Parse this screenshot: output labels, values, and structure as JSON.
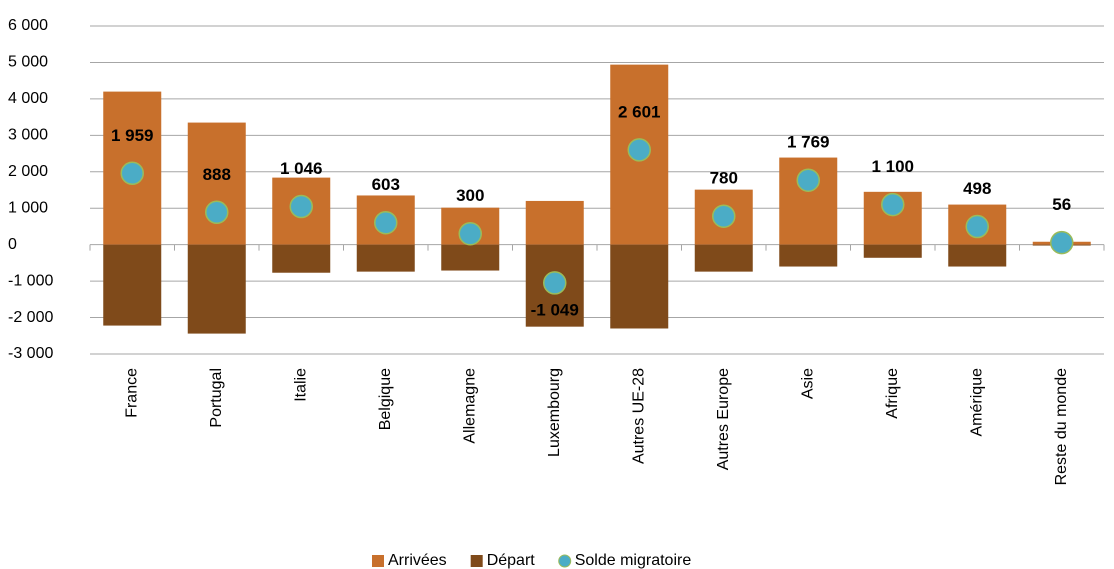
{
  "chart_data": {
    "type": "bar",
    "categories": [
      "France",
      "Portugal",
      "Italie",
      "Belgique",
      "Allemagne",
      "Luxembourg",
      "Autres UE-28",
      "Autres Europe",
      "Asie",
      "Afrique",
      "Amérique",
      "Reste du monde"
    ],
    "series": [
      {
        "name": "Arrivées",
        "color": "#c8702c",
        "values": [
          4200,
          3350,
          1840,
          1350,
          1015,
          1200,
          4940,
          1510,
          2390,
          1450,
          1100,
          80
        ]
      },
      {
        "name": "Départ",
        "color": "#7f4a1a",
        "values": [
          -2220,
          -2440,
          -770,
          -740,
          -710,
          -2250,
          -2300,
          -740,
          -600,
          -360,
          -600,
          -24
        ]
      },
      {
        "name": "Solde migratoire",
        "type": "scatter",
        "color": "#4bacc6",
        "values": [
          1959,
          888,
          1046,
          603,
          300,
          -1049,
          2601,
          780,
          1769,
          1100,
          498,
          56
        ],
        "value_labels": [
          "1 959",
          "888",
          "1 046",
          "603",
          "300",
          "-1 049",
          "2 601",
          "780",
          "1 769",
          "1 100",
          "498",
          "56"
        ]
      }
    ],
    "ylim": [
      -3000,
      6000
    ],
    "yticks": [
      {
        "value": -3000,
        "label": "-3 000"
      },
      {
        "value": -2000,
        "label": "-2 000"
      },
      {
        "value": -1000,
        "label": "-1 000"
      },
      0,
      {
        "value": 1000,
        "label": "1 000"
      },
      {
        "value": 2000,
        "label": "2 000"
      },
      {
        "value": 3000,
        "label": "3 000"
      },
      {
        "value": 4000,
        "label": "4 000"
      },
      {
        "value": 5000,
        "label": "5 000"
      },
      {
        "value": 6000,
        "label": "6 000"
      }
    ],
    "grid": true,
    "legend": "bottom"
  }
}
